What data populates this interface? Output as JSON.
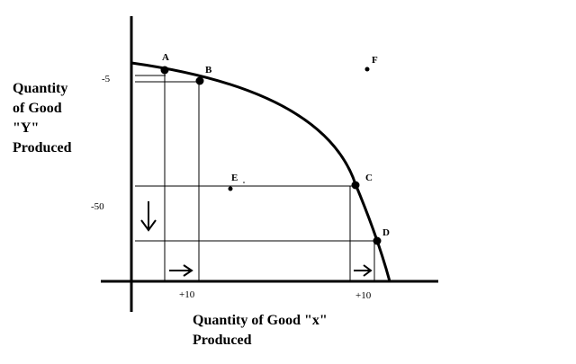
{
  "axes": {
    "y_label_lines": [
      "Quantity",
      "of Good",
      "\"Y\"",
      "Produced"
    ],
    "x_label_lines": [
      "Quantity of Good \"x\"",
      "Produced"
    ],
    "y_ticks": [
      "-5",
      "-50"
    ],
    "x_ticks": [
      "+10",
      "+10"
    ]
  },
  "points": {
    "A": "A",
    "B": "B",
    "C": "C",
    "D": "D",
    "E": "E",
    "F": "F"
  },
  "colors": {
    "ink": "#000000",
    "background": "#ffffff"
  }
}
